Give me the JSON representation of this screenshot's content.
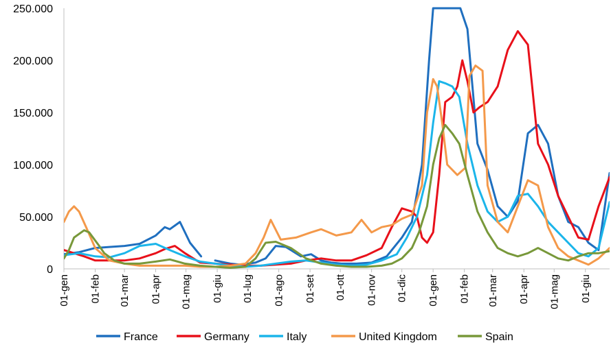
{
  "chart_data": {
    "type": "line",
    "title": "",
    "xlabel": "",
    "ylabel": "",
    "ylim": [
      0,
      250000
    ],
    "yticks": [
      0,
      50000,
      100000,
      150000,
      200000,
      250000
    ],
    "ytick_labels": [
      "0",
      "50.000",
      "100.000",
      "150.000",
      "200.000",
      "250.000"
    ],
    "x_unit": "days",
    "xlim": [
      0,
      541
    ],
    "xticks": [
      0,
      31,
      60,
      91,
      121,
      152,
      182,
      213,
      244,
      274,
      305,
      335,
      366,
      397,
      425,
      456,
      486,
      517
    ],
    "xtick_labels": [
      "01-gen",
      "01-feb",
      "01-mar",
      "01-apr",
      "01-mag",
      "01-giu",
      "01-lug",
      "01-ago",
      "01-set",
      "01-ott",
      "01-nov",
      "01-dic",
      "01-gen",
      "01-feb",
      "01-mar",
      "01-apr",
      "01-mag",
      "01-giu"
    ],
    "grid": false,
    "legend_position": "bottom",
    "series": [
      {
        "name": "France",
        "color": "#1f6fbf",
        "x": [
          0,
          15,
          31,
          45,
          60,
          75,
          91,
          100,
          105,
          115,
          125,
          136,
          142,
          150,
          155,
          165,
          175,
          190,
          200,
          210,
          220,
          225,
          235,
          245,
          255,
          265,
          275,
          290,
          305,
          320,
          335,
          345,
          355,
          362,
          366,
          370,
          375,
          380,
          385,
          393,
          400,
          410,
          420,
          430,
          440,
          450,
          460,
          470,
          480,
          490,
          500,
          510,
          520,
          530,
          541
        ],
        "y": [
          14000,
          16000,
          20000,
          21000,
          22000,
          24000,
          32000,
          40000,
          38000,
          45000,
          25000,
          12000,
          null,
          8000,
          7000,
          5000,
          4000,
          6000,
          10000,
          22000,
          21000,
          18000,
          12000,
          14000,
          8000,
          6000,
          5000,
          5000,
          6000,
          12000,
          30000,
          45000,
          100000,
          200000,
          250000,
          250000,
          250000,
          250000,
          250000,
          250000,
          230000,
          120000,
          95000,
          60000,
          50000,
          65000,
          130000,
          138000,
          120000,
          70000,
          45000,
          40000,
          25000,
          18000,
          92000
        ]
      },
      {
        "name": "Germany",
        "color": "#e8101a",
        "x": [
          0,
          10,
          20,
          31,
          45,
          60,
          75,
          91,
          100,
          110,
          120,
          135,
          150,
          165,
          180,
          195,
          210,
          225,
          240,
          255,
          270,
          285,
          300,
          315,
          325,
          335,
          345,
          350,
          355,
          360,
          366,
          372,
          378,
          385,
          390,
          395,
          400,
          406,
          412,
          420,
          430,
          440,
          450,
          460,
          470,
          480,
          490,
          500,
          510,
          520,
          530,
          541
        ],
        "y": [
          18000,
          15000,
          12000,
          8000,
          8000,
          8000,
          10000,
          15000,
          19000,
          22000,
          15000,
          6000,
          5000,
          4000,
          3000,
          3000,
          4000,
          5000,
          8000,
          10000,
          8000,
          8000,
          13000,
          20000,
          40000,
          58000,
          55000,
          50000,
          30000,
          25000,
          35000,
          90000,
          160000,
          165000,
          175000,
          200000,
          180000,
          150000,
          155000,
          160000,
          175000,
          210000,
          228000,
          215000,
          120000,
          100000,
          70000,
          50000,
          30000,
          28000,
          60000,
          88000
        ]
      },
      {
        "name": "Italy",
        "color": "#1bb5ea",
        "x": [
          0,
          15,
          31,
          45,
          60,
          75,
          91,
          105,
          120,
          135,
          150,
          165,
          180,
          195,
          210,
          225,
          240,
          255,
          270,
          285,
          300,
          315,
          330,
          340,
          350,
          360,
          366,
          372,
          378,
          385,
          392,
          400,
          410,
          420,
          430,
          440,
          450,
          460,
          470,
          480,
          490,
          500,
          510,
          520,
          530,
          541
        ],
        "y": [
          13000,
          15000,
          12000,
          11000,
          15000,
          22000,
          24000,
          18000,
          12000,
          7000,
          5000,
          3000,
          2000,
          3000,
          5000,
          7000,
          8000,
          6000,
          4000,
          3000,
          4000,
          8000,
          14000,
          30000,
          50000,
          90000,
          140000,
          180000,
          178000,
          175000,
          165000,
          120000,
          80000,
          55000,
          45000,
          50000,
          70000,
          72000,
          60000,
          45000,
          35000,
          25000,
          15000,
          12000,
          20000,
          64000
        ]
      },
      {
        "name": "United Kingdom",
        "color": "#f4994a",
        "x": [
          0,
          5,
          10,
          15,
          22,
          31,
          45,
          60,
          75,
          91,
          105,
          120,
          135,
          150,
          165,
          180,
          190,
          198,
          205,
          215,
          230,
          245,
          255,
          270,
          285,
          295,
          305,
          315,
          325,
          335,
          345,
          355,
          360,
          366,
          370,
          375,
          380,
          390,
          398,
          402,
          408,
          415,
          420,
          430,
          440,
          450,
          460,
          470,
          480,
          490,
          500,
          510,
          520,
          530,
          541
        ],
        "y": [
          45000,
          55000,
          60000,
          55000,
          40000,
          20000,
          8000,
          5000,
          3000,
          3000,
          3000,
          3000,
          2000,
          2000,
          3000,
          5000,
          15000,
          30000,
          47000,
          28000,
          30000,
          35000,
          38000,
          32000,
          35000,
          47000,
          35000,
          40000,
          42000,
          48000,
          52000,
          80000,
          150000,
          182000,
          175000,
          140000,
          100000,
          90000,
          97000,
          185000,
          195000,
          190000,
          80000,
          45000,
          35000,
          60000,
          85000,
          80000,
          40000,
          20000,
          12000,
          8000,
          4000,
          10000,
          20000
        ]
      },
      {
        "name": "Spain",
        "color": "#78983a",
        "x": [
          0,
          5,
          10,
          20,
          25,
          35,
          40,
          50,
          60,
          75,
          91,
          105,
          120,
          135,
          150,
          165,
          180,
          190,
          200,
          210,
          225,
          240,
          255,
          270,
          285,
          300,
          315,
          325,
          335,
          345,
          352,
          360,
          366,
          372,
          378,
          385,
          392,
          400,
          410,
          420,
          430,
          440,
          450,
          460,
          470,
          480,
          490,
          500,
          510,
          520,
          530,
          541
        ],
        "y": [
          10000,
          18000,
          30000,
          37000,
          35000,
          22000,
          15000,
          8000,
          5000,
          5000,
          7000,
          9000,
          5000,
          3000,
          2000,
          1000,
          2000,
          10000,
          25000,
          26000,
          20000,
          10000,
          5000,
          3000,
          2000,
          2000,
          3000,
          5000,
          10000,
          20000,
          35000,
          60000,
          100000,
          125000,
          138000,
          130000,
          120000,
          90000,
          55000,
          35000,
          20000,
          15000,
          12000,
          15000,
          20000,
          15000,
          10000,
          8000,
          12000,
          15000,
          15000,
          17000
        ]
      }
    ]
  }
}
